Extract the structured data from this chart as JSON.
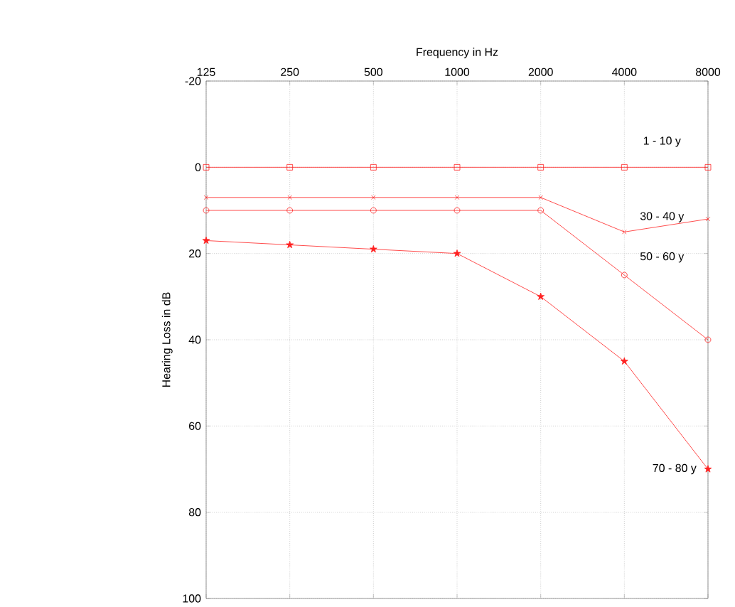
{
  "chart_data": {
    "type": "line",
    "xlabel": "Frequency in Hz",
    "ylabel": "Hearing Loss in dB",
    "categories": [
      "125",
      "250",
      "500",
      "1000",
      "2000",
      "4000",
      "8000"
    ],
    "series": [
      {
        "name": "1 - 10 y",
        "color": "#ff2020",
        "marker": "square",
        "values": [
          0,
          0,
          0,
          0,
          0,
          0,
          0
        ]
      },
      {
        "name": "30 - 40 y",
        "color": "#ff2020",
        "marker": "cross",
        "values": [
          7,
          7,
          7,
          7,
          7,
          15,
          12
        ]
      },
      {
        "name": "50 - 60 y",
        "color": "#ff2020",
        "marker": "circle",
        "values": [
          10,
          10,
          10,
          10,
          10,
          25,
          40
        ]
      },
      {
        "name": "70 - 80 y",
        "color": "#ff2020",
        "marker": "star",
        "values": [
          17,
          18,
          19,
          20,
          30,
          45,
          70
        ]
      }
    ],
    "ylim": [
      100,
      -20
    ],
    "yticks": [
      -20,
      0,
      20,
      40,
      60,
      80,
      100
    ],
    "grid": true,
    "line_style": "solid"
  }
}
